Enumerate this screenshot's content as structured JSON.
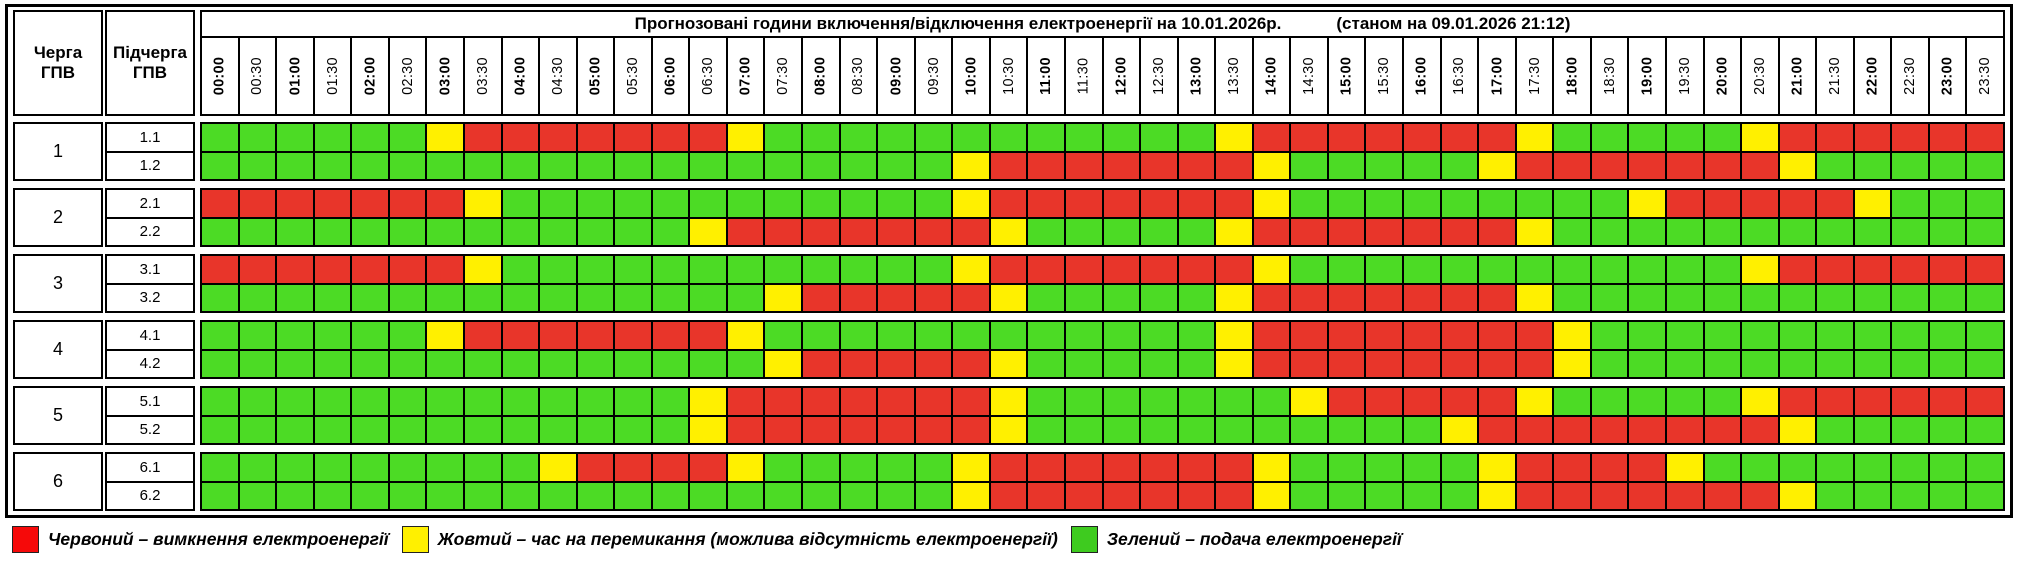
{
  "title": {
    "main": "Прогнозовані години включення/відключення електроенергії на 10.01.2026р.",
    "status": "(станом на 09.01.2026 21:12)"
  },
  "corner": {
    "col1_line1": "Черга",
    "col1_line2": "ГПВ",
    "col2_line1": "Підчерга",
    "col2_line2": "ГПВ"
  },
  "time_slots": [
    "00:00",
    "00:30",
    "01:00",
    "01:30",
    "02:00",
    "02:30",
    "03:00",
    "03:30",
    "04:00",
    "04:30",
    "05:00",
    "05:30",
    "06:00",
    "06:30",
    "07:00",
    "07:30",
    "08:00",
    "08:30",
    "09:00",
    "09:30",
    "10:00",
    "10:30",
    "11:00",
    "11:30",
    "12:00",
    "12:30",
    "13:00",
    "13:30",
    "14:00",
    "14:30",
    "15:00",
    "15:30",
    "16:00",
    "16:30",
    "17:00",
    "17:30",
    "18:00",
    "18:30",
    "19:00",
    "19:30",
    "20:00",
    "20:30",
    "21:00",
    "21:30",
    "22:00",
    "22:30",
    "23:00",
    "23:30"
  ],
  "colors": {
    "G": "#4CDB25",
    "Y": "#FFF000",
    "R": "#E8352A"
  },
  "groups": [
    {
      "queue": "1",
      "rows": [
        {
          "label": "1.1",
          "cells": "GGGGGGYRRRRRRRYGGGGGGGGGGGGYRRRRRRRYGGGGGYRRRRRR"
        },
        {
          "label": "1.2",
          "cells": "GGGGGGGGGGGGGGGGGGGGYRRRRRRRYGGGGGYRRRRRRRYGGGGG"
        }
      ]
    },
    {
      "queue": "2",
      "rows": [
        {
          "label": "2.1",
          "cells": "RRRRRRRYGGGGGGGGGGGGYRRRRRRRYGGGGGGGGGYRRRRRYGGG"
        },
        {
          "label": "2.2",
          "cells": "GGGGGGGGGGGGGYRRRRRRRYGGGGGYRRRRRRRYGGGGGGGGGGGG"
        }
      ]
    },
    {
      "queue": "3",
      "rows": [
        {
          "label": "3.1",
          "cells": "RRRRRRRYGGGGGGGGGGGGYRRRRRRRYGGGGGGGGGGGGYRRRRRR"
        },
        {
          "label": "3.2",
          "cells": "GGGGGGGGGGGGGGGYRRRRRYGGGGGYRRRRRRRYGGGGGGGGGGGG"
        }
      ]
    },
    {
      "queue": "4",
      "rows": [
        {
          "label": "4.1",
          "cells": "GGGGGGYRRRRRRRYGGGGGGGGGGGGYRRRRRRRRYGGGGGGGGGGG"
        },
        {
          "label": "4.2",
          "cells": "GGGGGGGGGGGGGGGYRRRRRYGGGGGYRRRRRRRRYGGGGGGGGGGG"
        }
      ]
    },
    {
      "queue": "5",
      "rows": [
        {
          "label": "5.1",
          "cells": "GGGGGGGGGGGGGYRRRRRRRYGGGGGGGYRRRRRYGGGGGYRRRRRR"
        },
        {
          "label": "5.2",
          "cells": "GGGGGGGGGGGGGYRRRRRRRYGGGGGGGGGGGYRRRRRRRRYGGGGG"
        }
      ]
    },
    {
      "queue": "6",
      "rows": [
        {
          "label": "6.1",
          "cells": "GGGGGGGGGYRRRRYGGGGGYRRRRRRRYGGGGGYRRRRYGGGGGGGG"
        },
        {
          "label": "6.2",
          "cells": "GGGGGGGGGGGGGGGGGGGGYRRRRRRRYGGGGGYRRRRRRRYGGGGG"
        }
      ]
    }
  ],
  "legend": [
    {
      "key": "red",
      "swatch": "#F60909",
      "label": "Червоний – вимкнення електроенергії"
    },
    {
      "key": "yellow",
      "swatch": "#FFF000",
      "label": "Жовтий – час на перемикання (можлива відсутність електроенергії)"
    },
    {
      "key": "green",
      "swatch": "#3ECB1F",
      "label": "Зелений – подача електроенергії"
    }
  ]
}
